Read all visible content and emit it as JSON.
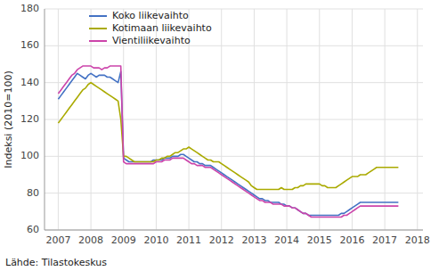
{
  "chart_data": {
    "type": "line",
    "y_label": "Indeksi (2010=100)",
    "annotations": [
      "Lähde: Tilastokeskus"
    ],
    "x": [
      2007,
      2007.0833333333333,
      2007.1666666666667,
      2007.25,
      2007.3333333333333,
      2007.4166666666667,
      2007.5,
      2007.5833333333333,
      2007.6666666666667,
      2007.75,
      2007.8333333333333,
      2007.9166666666667,
      2008,
      2008.0833333333333,
      2008.1666666666667,
      2008.25,
      2008.3333333333333,
      2008.4166666666667,
      2008.5,
      2008.5833333333333,
      2008.6666666666667,
      2008.75,
      2008.8333333333333,
      2008.9166666666667,
      2009,
      2009.0833333333333,
      2009.1666666666667,
      2009.25,
      2009.3333333333333,
      2009.4166666666667,
      2009.5,
      2009.5833333333333,
      2009.6666666666667,
      2009.75,
      2009.8333333333333,
      2009.9166666666667,
      2010,
      2010.0833333333333,
      2010.1666666666667,
      2010.25,
      2010.3333333333333,
      2010.4166666666667,
      2010.5,
      2010.5833333333333,
      2010.6666666666667,
      2010.75,
      2010.8333333333333,
      2010.9166666666667,
      2011,
      2011.0833333333333,
      2011.1666666666667,
      2011.25,
      2011.3333333333333,
      2011.4166666666667,
      2011.5,
      2011.5833333333333,
      2011.6666666666667,
      2011.75,
      2011.8333333333333,
      2011.9166666666667,
      2012,
      2012.0833333333333,
      2012.1666666666667,
      2012.25,
      2012.3333333333333,
      2012.4166666666667,
      2012.5,
      2012.5833333333333,
      2012.6666666666667,
      2012.75,
      2012.8333333333333,
      2012.9166666666667,
      2013,
      2013.0833333333333,
      2013.1666666666667,
      2013.25,
      2013.3333333333333,
      2013.4166666666667,
      2013.5,
      2013.5833333333333,
      2013.6666666666667,
      2013.75,
      2013.8333333333333,
      2013.9166666666667,
      2014,
      2014.0833333333333,
      2014.1666666666667,
      2014.25,
      2014.3333333333333,
      2014.4166666666667,
      2014.5,
      2014.5833333333333,
      2014.6666666666667,
      2014.75,
      2014.8333333333333,
      2014.9166666666667,
      2015,
      2015.0833333333333,
      2015.1666666666667,
      2015.25,
      2015.3333333333333,
      2015.4166666666667,
      2015.5,
      2015.5833333333333,
      2015.6666666666667,
      2015.75,
      2015.8333333333333,
      2015.9166666666667,
      2016,
      2016.0833333333333,
      2016.1666666666667,
      2016.25,
      2016.3333333333333,
      2016.4166666666667,
      2016.5,
      2016.5833333333333,
      2016.6666666666667,
      2016.75,
      2016.8333333333333,
      2016.9166666666667,
      2017,
      2017.0833333333333,
      2017.1666666666667,
      2017.25,
      2017.3333333333333,
      2017.4166666666667
    ],
    "series": [
      {
        "name": "Koko liikevaihto",
        "color": "#4472C4",
        "values": [
          131,
          133,
          135,
          137,
          139,
          141,
          143,
          145,
          144,
          143,
          142,
          144,
          145,
          144,
          143,
          144,
          144,
          144,
          143,
          143,
          142,
          141,
          140,
          146,
          99,
          98,
          97,
          97,
          97,
          97,
          97,
          97,
          97,
          97,
          97,
          98,
          98,
          98,
          98,
          99,
          99,
          99,
          100,
          100,
          100,
          101,
          101,
          100,
          99,
          98,
          97,
          97,
          96,
          96,
          95,
          95,
          95,
          94,
          93,
          92,
          91,
          90,
          89,
          88,
          87,
          86,
          85,
          84,
          83,
          82,
          81,
          80,
          79,
          78,
          77,
          77,
          76,
          76,
          75,
          75,
          75,
          75,
          74,
          74,
          73,
          73,
          72,
          72,
          71,
          70,
          69,
          69,
          68,
          68,
          68,
          68,
          68,
          68,
          68,
          68,
          68,
          68,
          68,
          68,
          69,
          69,
          70,
          71,
          72,
          73,
          74,
          75,
          75,
          75,
          75,
          75,
          75,
          75,
          75,
          75,
          75,
          75,
          75,
          75,
          75,
          75
        ]
      },
      {
        "name": "Kotimaan liikevaihto",
        "color": "#AAAA00",
        "values": [
          118,
          120,
          122,
          124,
          126,
          128,
          130,
          132,
          134,
          136,
          137,
          139,
          140,
          139,
          138,
          137,
          136,
          135,
          134,
          133,
          132,
          131,
          130,
          120,
          100,
          100,
          99,
          98,
          97,
          97,
          97,
          97,
          97,
          97,
          97,
          97,
          98,
          98,
          99,
          99,
          100,
          100,
          101,
          102,
          102,
          103,
          104,
          104,
          105,
          104,
          103,
          102,
          101,
          100,
          99,
          98,
          98,
          97,
          97,
          97,
          96,
          95,
          94,
          93,
          92,
          91,
          90,
          89,
          88,
          87,
          86,
          84,
          83,
          82,
          82,
          82,
          82,
          82,
          82,
          82,
          82,
          82,
          83,
          82,
          82,
          82,
          82,
          83,
          83,
          84,
          84,
          85,
          85,
          85,
          85,
          85,
          85,
          84,
          84,
          83,
          83,
          83,
          83,
          84,
          85,
          86,
          87,
          88,
          89,
          89,
          89,
          90,
          90,
          90,
          91,
          92,
          93,
          94,
          94,
          94,
          94,
          94,
          94,
          94,
          94,
          94
        ]
      },
      {
        "name": "Vientiliikevaihto",
        "color": "#CC44AA",
        "values": [
          134,
          136,
          138,
          140,
          142,
          144,
          145,
          147,
          148,
          149,
          149,
          149,
          149,
          148,
          148,
          148,
          147,
          148,
          148,
          149,
          149,
          149,
          149,
          149,
          97,
          96,
          96,
          96,
          96,
          96,
          96,
          96,
          96,
          96,
          96,
          96,
          97,
          97,
          97,
          98,
          98,
          98,
          99,
          99,
          99,
          99,
          99,
          98,
          97,
          96,
          96,
          95,
          95,
          95,
          94,
          94,
          94,
          93,
          92,
          91,
          90,
          89,
          88,
          87,
          86,
          85,
          84,
          83,
          82,
          81,
          80,
          79,
          78,
          77,
          76,
          76,
          75,
          75,
          75,
          74,
          74,
          74,
          74,
          73,
          73,
          73,
          72,
          72,
          71,
          70,
          69,
          69,
          68,
          67,
          67,
          67,
          67,
          67,
          67,
          67,
          67,
          67,
          67,
          67,
          67,
          68,
          68,
          69,
          70,
          71,
          72,
          73,
          73,
          73,
          73,
          73,
          73,
          73,
          73,
          73,
          73,
          73,
          73,
          73,
          73,
          73
        ]
      }
    ],
    "xlim": [
      2006.58,
      2018.17
    ],
    "xticks": [
      2007,
      2008,
      2009,
      2010,
      2011,
      2012,
      2013,
      2014,
      2015,
      2016,
      2017,
      2018
    ],
    "ylim": [
      60,
      180
    ],
    "yticks": [
      60,
      80,
      100,
      120,
      140,
      160,
      180
    ],
    "grid": true,
    "legend": "upper left"
  }
}
